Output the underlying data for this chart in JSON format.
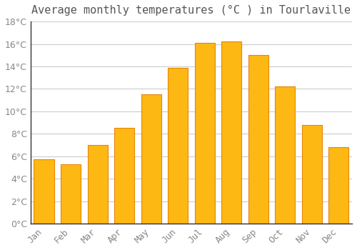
{
  "title": "Average monthly temperatures (°C ) in Tourlaville",
  "months": [
    "Jan",
    "Feb",
    "Mar",
    "Apr",
    "May",
    "Jun",
    "Jul",
    "Aug",
    "Sep",
    "Oct",
    "Nov",
    "Dec"
  ],
  "temperatures": [
    5.7,
    5.3,
    7.0,
    8.5,
    11.5,
    13.9,
    16.1,
    16.2,
    15.0,
    12.2,
    8.8,
    6.8
  ],
  "bar_color_face": "#FDB813",
  "bar_color_edge": "#E8850A",
  "ylim": [
    0,
    18
  ],
  "yticks": [
    0,
    2,
    4,
    6,
    8,
    10,
    12,
    14,
    16,
    18
  ],
  "background_color": "#FFFFFF",
  "plot_bg_color": "#FFFFFF",
  "grid_color": "#CCCCCC",
  "title_fontsize": 11,
  "tick_fontsize": 9,
  "title_color": "#555555",
  "tick_color": "#888888",
  "left_spine_color": "#333333",
  "bottom_spine_color": "#333333"
}
